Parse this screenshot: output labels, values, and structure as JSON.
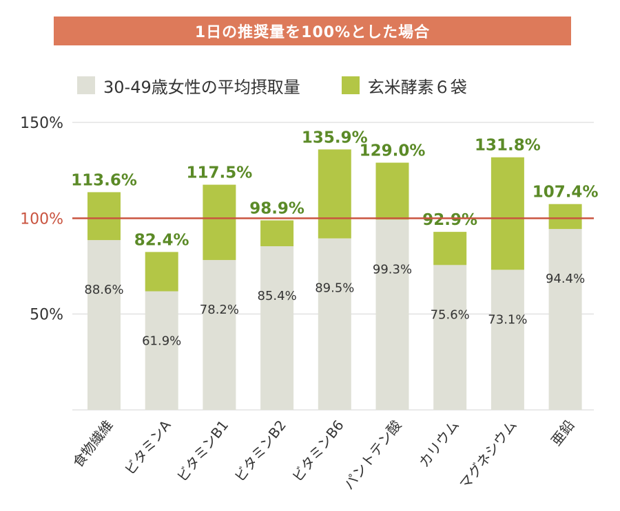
{
  "colors": {
    "title_bg": "#dd7a5a",
    "base": "#dfe0d6",
    "supplement": "#b3c646",
    "supplement_label": "#5b8a27",
    "reference_line": "#c9533f",
    "reference_label": "#c9533f",
    "grid": "#d4d4d4",
    "text": "#333333"
  },
  "chart_data": {
    "type": "bar",
    "stacked": true,
    "title": "1日の推奨量を100%とした場合",
    "legend": [
      {
        "name": "30-49歳女性の平均摂取量",
        "color": "#dfe0d6"
      },
      {
        "name": "玄米酵素６袋",
        "color": "#b3c646"
      }
    ],
    "categories": [
      "食物繊維",
      "ビタミンA",
      "ビタミンB1",
      "ビタミンB2",
      "ビタミンB6",
      "パントテン酸",
      "カリウム",
      "マグネシウム",
      "亜鉛"
    ],
    "base_values": [
      88.6,
      61.9,
      78.2,
      85.4,
      89.5,
      99.3,
      75.6,
      73.1,
      94.4
    ],
    "base_labels": [
      "88.6%",
      "61.9%",
      "78.2%",
      "85.4%",
      "89.5%",
      "99.3%",
      "75.6%",
      "73.1%",
      "94.4%"
    ],
    "total_values": [
      113.6,
      82.4,
      117.5,
      98.9,
      135.9,
      129.0,
      92.9,
      131.8,
      107.4
    ],
    "total_labels": [
      "113.6%",
      "82.4%",
      "117.5%",
      "98.9%",
      "135.9%",
      "129.0%",
      "92.9%",
      "131.8%",
      "107.4%"
    ],
    "y_ticks": [
      {
        "value": 150,
        "label": "150%"
      },
      {
        "value": 100,
        "label": "100%"
      },
      {
        "value": 50,
        "label": "50%"
      }
    ],
    "ylim": [
      0,
      150
    ],
    "reference_value": 100,
    "grid": true,
    "legend_position": "top-left"
  }
}
